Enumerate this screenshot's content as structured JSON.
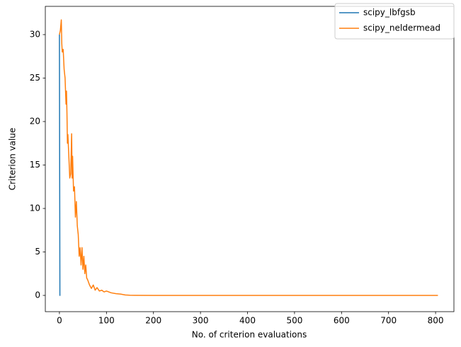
{
  "chart_data": {
    "type": "line",
    "xlabel": "No. of criterion evaluations",
    "ylabel": "Criterion value",
    "xlim": [
      -30,
      839
    ],
    "ylim": [
      -1.87,
      33.25
    ],
    "xticks": [
      0,
      100,
      200,
      300,
      400,
      500,
      600,
      700,
      800
    ],
    "yticks": [
      0,
      5,
      10,
      15,
      20,
      25,
      30
    ],
    "legend": "upper right",
    "series": [
      {
        "name": "scipy_lbfgsb",
        "color": "#1f77b4",
        "x": [
          0,
          1,
          2
        ],
        "values": [
          30,
          0,
          0
        ]
      },
      {
        "name": "scipy_neldermead",
        "color": "#ff7f0e",
        "x": [
          0,
          2,
          4,
          5,
          6,
          8,
          10,
          12,
          14,
          15,
          16,
          17,
          18,
          20,
          22,
          24,
          26,
          27,
          28,
          30,
          32,
          34,
          36,
          38,
          40,
          42,
          44,
          46,
          48,
          50,
          52,
          54,
          56,
          58,
          60,
          64,
          68,
          72,
          76,
          80,
          85,
          90,
          95,
          100,
          110,
          120,
          130,
          140,
          150,
          160,
          200,
          400,
          600,
          805
        ],
        "values": [
          30,
          30.5,
          31.7,
          29,
          28,
          28.3,
          26,
          25,
          22,
          23.5,
          21,
          17.5,
          18.5,
          16,
          13.5,
          14,
          18.6,
          13.5,
          16,
          12,
          12.5,
          9,
          10.8,
          8,
          7,
          4.5,
          5.5,
          3.5,
          5.5,
          3,
          4.5,
          2.5,
          3.5,
          2,
          1.8,
          1.2,
          0.8,
          1.2,
          0.6,
          0.9,
          0.5,
          0.6,
          0.4,
          0.5,
          0.3,
          0.2,
          0.15,
          0.05,
          0.02,
          0.01,
          0,
          0,
          0,
          0
        ]
      }
    ]
  }
}
